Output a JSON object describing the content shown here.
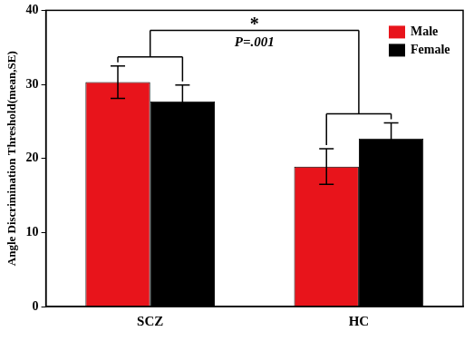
{
  "chart_data": {
    "type": "bar",
    "categories": [
      "SCZ",
      "HC"
    ],
    "series": [
      {
        "name": "Male",
        "color": "#e8141b",
        "values": [
          30.3,
          18.9
        ],
        "errors": [
          2.2,
          2.4
        ]
      },
      {
        "name": "Female",
        "color": "#000000",
        "values": [
          27.7,
          22.7
        ],
        "errors": [
          2.2,
          2.1
        ]
      }
    ],
    "ylabel": "Angle Discrimination Threshold(mean,SE)",
    "ylim": [
      0,
      40
    ],
    "yticks": [
      0,
      10,
      20,
      30,
      40
    ],
    "grid": false,
    "legend": "upper right",
    "annotations": [
      "*",
      "P=.001"
    ]
  }
}
